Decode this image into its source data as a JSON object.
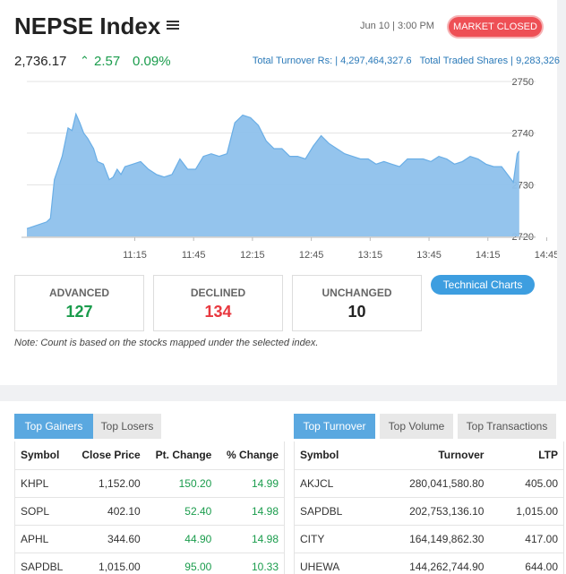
{
  "header": {
    "title": "NEPSE Index",
    "datetime": "Jun 10 | 3:00 PM",
    "market_status": "MARKET CLOSED",
    "index_value": "2,736.17",
    "change_points": "2.57",
    "change_percent": "0.09%",
    "turnover_label": "Total Turnover Rs: |",
    "turnover_value": "4,297,464,327.6",
    "traded_shares_label": "Total Traded Shares |",
    "traded_shares_value": "9,283,326"
  },
  "chart_data": {
    "type": "area",
    "x_ticks": [
      "11:15",
      "11:45",
      "12:15",
      "12:45",
      "13:15",
      "13:45",
      "14:15",
      "14:45"
    ],
    "y_ticks": [
      "2750",
      "2740",
      "2730",
      "2720"
    ],
    "ylim": [
      2720,
      2750
    ],
    "xlim_minutes": [
      0,
      252
    ],
    "color": "#8ec1ec",
    "x": [
      0,
      10,
      12,
      14,
      18,
      21,
      23,
      25,
      27,
      29,
      31,
      34,
      36,
      39,
      42,
      44,
      46,
      48,
      50,
      54,
      58,
      62,
      66,
      70,
      74,
      78,
      82,
      86,
      90,
      94,
      98,
      102,
      106,
      110,
      114,
      118,
      122,
      126,
      130,
      134,
      138,
      142,
      146,
      150,
      154,
      158,
      162,
      166,
      170,
      174,
      178,
      182,
      186,
      190,
      194,
      198,
      202,
      206,
      210,
      214,
      218,
      222,
      226,
      230,
      234,
      238,
      242,
      246,
      248,
      250,
      251
    ],
    "y": [
      2721.5,
      2722.8,
      2723.5,
      2731,
      2735.5,
      2741,
      2740.5,
      2743.7,
      2742,
      2740,
      2739,
      2737,
      2734.5,
      2734,
      2731,
      2731.5,
      2733,
      2732,
      2733.5,
      2734,
      2734.5,
      2733,
      2732,
      2731.5,
      2732,
      2735,
      2733,
      2733,
      2735.5,
      2736,
      2735.5,
      2736,
      2742,
      2743.5,
      2743,
      2741.5,
      2738.5,
      2737,
      2737,
      2735.5,
      2735.5,
      2735,
      2737.5,
      2739.5,
      2738,
      2737,
      2736,
      2735.5,
      2735,
      2735,
      2734,
      2734.5,
      2734,
      2733.5,
      2735,
      2735,
      2735,
      2734.5,
      2735.5,
      2735,
      2734,
      2734.5,
      2735.5,
      2735,
      2734,
      2733.5,
      2733.5,
      2731.5,
      2730.5,
      2736,
      2736.5
    ],
    "title": "",
    "xlabel": "",
    "ylabel": ""
  },
  "stats": {
    "advanced_label": "ADVANCED",
    "advanced_value": "127",
    "declined_label": "DECLINED",
    "declined_value": "134",
    "unchanged_label": "UNCHANGED",
    "unchanged_value": "10",
    "technical_charts": "Technical Charts",
    "note": "Note: Count is based on the stocks mapped under the selected index."
  },
  "left_tabs": [
    "Top Gainers",
    "Top Losers"
  ],
  "right_tabs": [
    "Top Turnover",
    "Top Volume",
    "Top Transactions"
  ],
  "gainers": {
    "headers": [
      "Symbol",
      "Close Price",
      "Pt. Change",
      "% Change"
    ],
    "rows": [
      [
        "KHPL",
        "1,152.00",
        "150.20",
        "14.99"
      ],
      [
        "SOPL",
        "402.10",
        "52.40",
        "14.98"
      ],
      [
        "APHL",
        "344.60",
        "44.90",
        "14.98"
      ],
      [
        "SAPDBL",
        "1,015.00",
        "95.00",
        "10.33"
      ]
    ]
  },
  "turnover": {
    "headers": [
      "Symbol",
      "Turnover",
      "LTP"
    ],
    "rows": [
      [
        "AKJCL",
        "280,041,580.80",
        "405.00"
      ],
      [
        "SAPDBL",
        "202,753,136.10",
        "1,015.00"
      ],
      [
        "CITY",
        "164,149,862.30",
        "417.00"
      ],
      [
        "UHEWA",
        "144,262,744.90",
        "644.00"
      ]
    ]
  }
}
